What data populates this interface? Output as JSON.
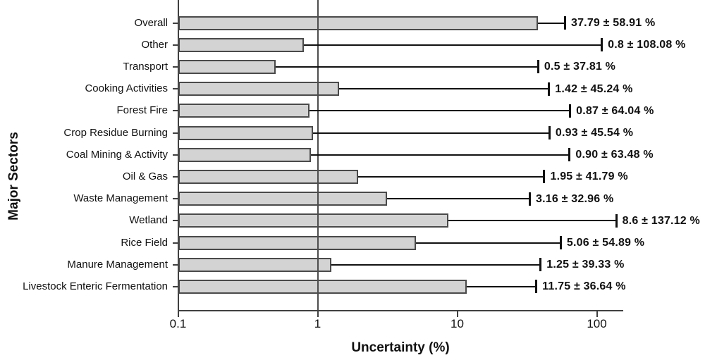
{
  "chart_data": {
    "type": "bar",
    "orientation": "horizontal",
    "xlabel": "Uncertainty (%)",
    "ylabel": "Major Sectors",
    "x_scale": "log",
    "xlim": [
      0.1,
      150
    ],
    "x_ticks": [
      0.1,
      1,
      10,
      100
    ],
    "x_tick_labels": [
      "0.1",
      "1",
      "10",
      "100"
    ],
    "reference_line_x": 1,
    "grid": "single vertical reference line at x=1, drawn over bars",
    "legend": "none",
    "bar_fill_color": "#d3d3d3",
    "bar_border_color": "#4a4a4a",
    "error_bar_color": "#111111",
    "rows": [
      {
        "label": "Overall",
        "value": 37.79,
        "uncertainty_pct": 58.91,
        "annotation": "37.79 ± 58.91 %"
      },
      {
        "label": "Other",
        "value": 0.8,
        "uncertainty_pct": 108.08,
        "annotation": "0.8 ± 108.08 %"
      },
      {
        "label": "Transport",
        "value": 0.5,
        "uncertainty_pct": 37.81,
        "annotation": "0.5 ± 37.81 %"
      },
      {
        "label": "Cooking Activities",
        "value": 1.42,
        "uncertainty_pct": 45.24,
        "annotation": "1.42 ± 45.24 %"
      },
      {
        "label": "Forest Fire",
        "value": 0.87,
        "uncertainty_pct": 64.04,
        "annotation": "0.87 ± 64.04 %"
      },
      {
        "label": "Crop Residue Burning",
        "value": 0.93,
        "uncertainty_pct": 45.54,
        "annotation": "0.93 ± 45.54 %"
      },
      {
        "label": "Coal Mining & Activity",
        "value": 0.9,
        "uncertainty_pct": 63.48,
        "annotation": "0.90 ± 63.48 %"
      },
      {
        "label": "Oil & Gas",
        "value": 1.95,
        "uncertainty_pct": 41.79,
        "annotation": "1.95 ± 41.79 %"
      },
      {
        "label": "Waste Management",
        "value": 3.16,
        "uncertainty_pct": 32.96,
        "annotation": "3.16 ± 32.96 %"
      },
      {
        "label": "Wetland",
        "value": 8.6,
        "uncertainty_pct": 137.12,
        "annotation": "8.6 ± 137.12 %"
      },
      {
        "label": "Rice Field",
        "value": 5.06,
        "uncertainty_pct": 54.89,
        "annotation": "5.06 ± 54.89 %"
      },
      {
        "label": "Manure Management",
        "value": 1.25,
        "uncertainty_pct": 39.33,
        "annotation": "1.25 ± 39.33 %"
      },
      {
        "label": "Livestock Enteric Fermentation",
        "value": 11.75,
        "uncertainty_pct": 36.64,
        "annotation": "11.75 ± 36.64 %"
      }
    ]
  }
}
